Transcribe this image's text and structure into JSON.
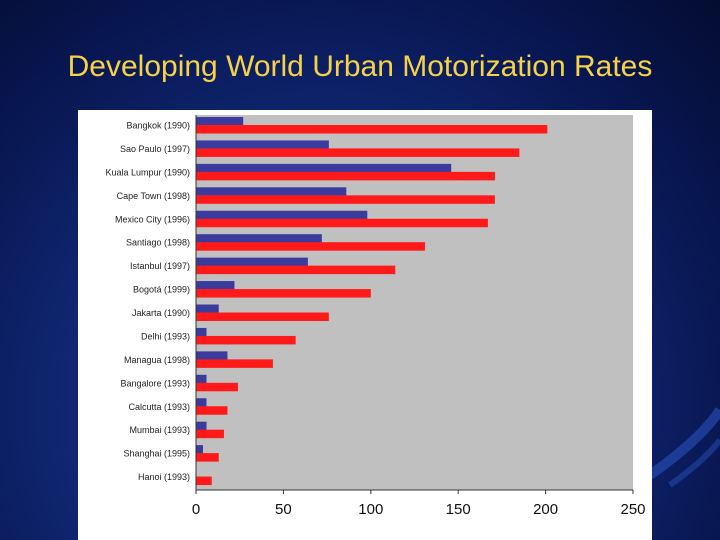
{
  "slide": {
    "title": "Developing World Urban Motorization Rates"
  },
  "colors": {
    "series_a": "#3b3b9e",
    "series_b": "#ff1a1a",
    "plot_bg": "#c0c0c0",
    "title": "#f5d24a"
  },
  "chart_data": {
    "type": "bar",
    "orientation": "horizontal",
    "categories": [
      "Bangkok (1990)",
      "Sao Paulo (1997)",
      "Kuala Lumpur (1990)",
      "Cape Town (1998)",
      "Mexico City (1996)",
      "Santiago (1998)",
      "Istanbul (1997)",
      "Bogotá (1999)",
      "Jakarta (1990)",
      "Delhi (1993)",
      "Managua (1998)",
      "Bangalore (1993)",
      "Calcutta (1993)",
      "Mumbai (1993)",
      "Shanghai (1995)",
      "Hanoi (1993)"
    ],
    "series": [
      {
        "color": "#3b3b9e",
        "values": [
          27,
          76,
          146,
          86,
          98,
          72,
          64,
          22,
          13,
          6,
          18,
          6,
          6,
          6,
          4,
          0
        ]
      },
      {
        "color": "#ff1a1a",
        "values": [
          201,
          185,
          171,
          171,
          167,
          131,
          114,
          100,
          76,
          57,
          44,
          24,
          18,
          16,
          13,
          9
        ]
      }
    ],
    "xlim": [
      0,
      250
    ],
    "xticks": [
      0,
      50,
      100,
      150,
      200,
      250
    ],
    "grid": false,
    "legend": "none"
  }
}
